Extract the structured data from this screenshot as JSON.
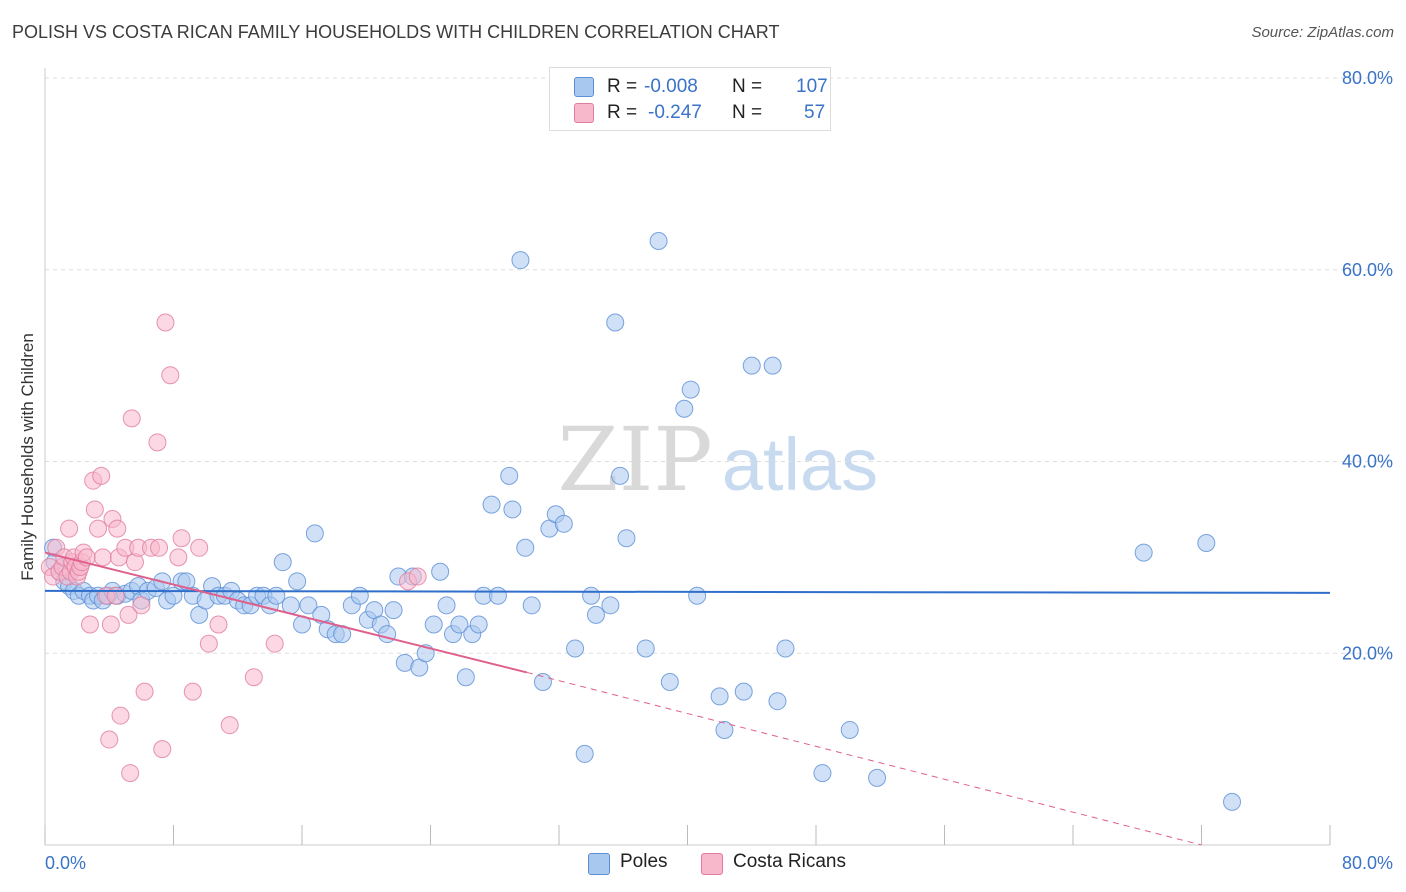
{
  "header": {
    "title": "POLISH VS COSTA RICAN FAMILY HOUSEHOLDS WITH CHILDREN CORRELATION CHART",
    "source": "Source: ZipAtlas.com"
  },
  "watermark": {
    "zip": "ZIP",
    "atlas": "atlas"
  },
  "legend": {
    "rows": [
      {
        "r_label": "R =",
        "r_value": "-0.008",
        "n_label": "N =",
        "n_value": "107",
        "color": "#a9c8f0"
      },
      {
        "r_label": "R =",
        "r_value": "-0.247",
        "n_label": "N =",
        "n_value": "57",
        "color": "#f8b8cc"
      }
    ]
  },
  "bottom_legend": [
    {
      "label": "Poles",
      "color": "#a9c8f0"
    },
    {
      "label": "Costa Ricans",
      "color": "#f8b8cc"
    }
  ],
  "colors": {
    "poles_fill": "#a9c8f0",
    "poles_stroke": "#5b8fd6",
    "poles_line": "#2f6fcb",
    "cr_fill": "#f8b8cc",
    "cr_stroke": "#e07c9d",
    "cr_line": "#e0608c",
    "grid": "#dddddd",
    "tick_label": "#3a73c8"
  },
  "chart_data": {
    "type": "scatter",
    "title": "POLISH VS COSTA RICAN FAMILY HOUSEHOLDS WITH CHILDREN CORRELATION CHART",
    "xlabel": "",
    "ylabel": "Family Households with Children",
    "xlim": [
      0,
      80
    ],
    "ylim": [
      0,
      80
    ],
    "x_tick_labels": [
      "0.0%",
      "80.0%"
    ],
    "y_tick_values": [
      20,
      40,
      60,
      80
    ],
    "y_tick_labels": [
      "20.0%",
      "40.0%",
      "60.0%",
      "80.0%"
    ],
    "grid": true,
    "legend_position": "top-center",
    "series": [
      {
        "name": "Poles",
        "points": [
          [
            0.5,
            31
          ],
          [
            0.6,
            29.5
          ],
          [
            0.9,
            28.5
          ],
          [
            1.2,
            27.5
          ],
          [
            1.5,
            27
          ],
          [
            1.8,
            26.5
          ],
          [
            2.1,
            26
          ],
          [
            2.4,
            26.5
          ],
          [
            2.8,
            26
          ],
          [
            3.0,
            25.5
          ],
          [
            3.3,
            26
          ],
          [
            3.6,
            25.5
          ],
          [
            3.9,
            26
          ],
          [
            4.2,
            26.5
          ],
          [
            4.5,
            26
          ],
          [
            5.0,
            26.2
          ],
          [
            5.4,
            26.5
          ],
          [
            5.8,
            27
          ],
          [
            6.0,
            25.5
          ],
          [
            6.4,
            26.5
          ],
          [
            6.9,
            26.8
          ],
          [
            7.3,
            27.5
          ],
          [
            7.6,
            25.5
          ],
          [
            8.0,
            26
          ],
          [
            8.5,
            27.5
          ],
          [
            8.8,
            27.5
          ],
          [
            9.2,
            26
          ],
          [
            9.6,
            24
          ],
          [
            10.0,
            25.5
          ],
          [
            10.4,
            27
          ],
          [
            10.8,
            26
          ],
          [
            11.2,
            26
          ],
          [
            11.6,
            26.5
          ],
          [
            12.0,
            25.5
          ],
          [
            12.4,
            25
          ],
          [
            12.8,
            25
          ],
          [
            13.2,
            26
          ],
          [
            13.6,
            26
          ],
          [
            14.0,
            25
          ],
          [
            14.4,
            26
          ],
          [
            14.8,
            29.5
          ],
          [
            15.3,
            25
          ],
          [
            15.7,
            27.5
          ],
          [
            16.0,
            23
          ],
          [
            16.4,
            25
          ],
          [
            16.8,
            32.5
          ],
          [
            17.2,
            24
          ],
          [
            17.6,
            22.5
          ],
          [
            18.1,
            22
          ],
          [
            18.5,
            22
          ],
          [
            19.1,
            25
          ],
          [
            19.6,
            26
          ],
          [
            20.1,
            23.5
          ],
          [
            20.5,
            24.5
          ],
          [
            20.9,
            23
          ],
          [
            21.3,
            22
          ],
          [
            21.7,
            24.5
          ],
          [
            22.0,
            28
          ],
          [
            22.4,
            19
          ],
          [
            22.9,
            28
          ],
          [
            23.3,
            18.5
          ],
          [
            23.7,
            20
          ],
          [
            24.2,
            23
          ],
          [
            24.6,
            28.5
          ],
          [
            25.0,
            25
          ],
          [
            25.4,
            22
          ],
          [
            25.8,
            23
          ],
          [
            26.2,
            17.5
          ],
          [
            26.6,
            22
          ],
          [
            27.0,
            23
          ],
          [
            27.3,
            26
          ],
          [
            27.8,
            35.5
          ],
          [
            28.2,
            26
          ],
          [
            28.9,
            38.5
          ],
          [
            29.1,
            35
          ],
          [
            29.6,
            61
          ],
          [
            29.9,
            31
          ],
          [
            30.3,
            25
          ],
          [
            31.0,
            17
          ],
          [
            31.4,
            33
          ],
          [
            31.8,
            34.5
          ],
          [
            32.3,
            33.5
          ],
          [
            33.0,
            20.5
          ],
          [
            33.6,
            9.5
          ],
          [
            34.0,
            26
          ],
          [
            34.3,
            24
          ],
          [
            35.2,
            25
          ],
          [
            35.5,
            54.5
          ],
          [
            35.8,
            38.5
          ],
          [
            36.2,
            32
          ],
          [
            37.4,
            20.5
          ],
          [
            38.2,
            63
          ],
          [
            38.9,
            17
          ],
          [
            39.8,
            45.5
          ],
          [
            40.2,
            47.5
          ],
          [
            40.6,
            26
          ],
          [
            42.0,
            15.5
          ],
          [
            42.3,
            12
          ],
          [
            43.5,
            16
          ],
          [
            44.0,
            50
          ],
          [
            45.3,
            50
          ],
          [
            45.6,
            15
          ],
          [
            46.1,
            20.5
          ],
          [
            48.4,
            7.5
          ],
          [
            50.1,
            12
          ],
          [
            51.8,
            7
          ],
          [
            68.4,
            30.5
          ],
          [
            72.3,
            31.5
          ],
          [
            73.9,
            4.5
          ]
        ]
      },
      {
        "name": "Costa Ricans",
        "points": [
          [
            0.3,
            29
          ],
          [
            0.5,
            28
          ],
          [
            0.7,
            31
          ],
          [
            0.9,
            28.5
          ],
          [
            1.1,
            29
          ],
          [
            1.2,
            30
          ],
          [
            1.4,
            28
          ],
          [
            1.5,
            33
          ],
          [
            1.6,
            28.5
          ],
          [
            1.7,
            29.5
          ],
          [
            1.8,
            30
          ],
          [
            1.9,
            29
          ],
          [
            2.0,
            28
          ],
          [
            2.1,
            28.5
          ],
          [
            2.2,
            29
          ],
          [
            2.3,
            29.5
          ],
          [
            2.4,
            30.5
          ],
          [
            2.6,
            30
          ],
          [
            2.8,
            23
          ],
          [
            3.0,
            38
          ],
          [
            3.1,
            35
          ],
          [
            3.3,
            33
          ],
          [
            3.5,
            38.5
          ],
          [
            3.6,
            30
          ],
          [
            3.8,
            26
          ],
          [
            4.0,
            11
          ],
          [
            4.1,
            23
          ],
          [
            4.2,
            34
          ],
          [
            4.4,
            26
          ],
          [
            4.5,
            33
          ],
          [
            4.6,
            30
          ],
          [
            4.7,
            13.5
          ],
          [
            5.0,
            31
          ],
          [
            5.2,
            24
          ],
          [
            5.3,
            7.5
          ],
          [
            5.4,
            44.5
          ],
          [
            5.6,
            29.5
          ],
          [
            5.8,
            31
          ],
          [
            6.0,
            25
          ],
          [
            6.2,
            16
          ],
          [
            6.6,
            31
          ],
          [
            7.0,
            42
          ],
          [
            7.1,
            31
          ],
          [
            7.3,
            10
          ],
          [
            7.5,
            54.5
          ],
          [
            7.8,
            49
          ],
          [
            8.3,
            30
          ],
          [
            8.5,
            32
          ],
          [
            9.2,
            16
          ],
          [
            9.6,
            31
          ],
          [
            10.2,
            21
          ],
          [
            10.8,
            23
          ],
          [
            11.5,
            12.5
          ],
          [
            13.0,
            17.5
          ],
          [
            14.3,
            21
          ],
          [
            22.6,
            27.5
          ],
          [
            23.2,
            28
          ]
        ]
      }
    ],
    "trend_lines": [
      {
        "series": "Poles",
        "x": [
          0,
          80
        ],
        "y": [
          26.5,
          26.3
        ]
      },
      {
        "series": "Costa Ricans",
        "x": [
          0,
          30
        ],
        "y": [
          30.5,
          18
        ]
      },
      {
        "series": "Costa Ricans (extrapolated)",
        "x": [
          30,
          72
        ],
        "y": [
          18,
          0
        ]
      }
    ]
  }
}
